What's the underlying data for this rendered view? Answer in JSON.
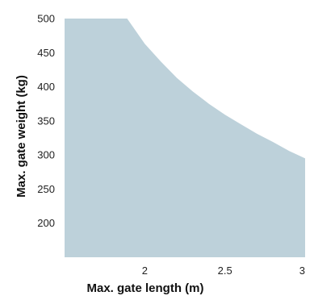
{
  "chart_data": {
    "type": "area",
    "xlabel": "Max. gate length (m)",
    "ylabel": "Max. gate weight (kg)",
    "xlim": [
      1.5,
      3
    ],
    "ylim": [
      150,
      500
    ],
    "x_ticks": [
      "2",
      "2.5",
      "3"
    ],
    "y_ticks": [
      "200",
      "250",
      "300",
      "350",
      "400",
      "450",
      "500"
    ],
    "grid": false,
    "legend": "none",
    "fill_color": "#bdd1da",
    "series": [
      {
        "x": [
          1.5,
          1.89,
          2.0,
          2.1,
          2.2,
          2.3,
          2.4,
          2.5,
          2.6,
          2.7,
          2.8,
          2.9,
          3.0
        ],
        "values": [
          500,
          500,
          463,
          437,
          413,
          393,
          375,
          359,
          345,
          331,
          319,
          306,
          295
        ]
      }
    ]
  }
}
